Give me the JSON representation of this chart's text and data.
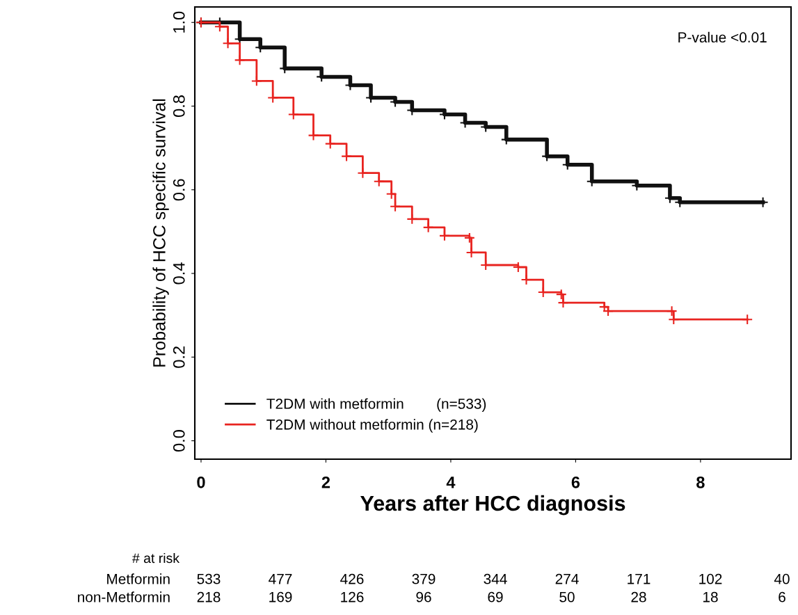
{
  "chart_data": {
    "type": "step",
    "xlabel": "Years after HCC diagnosis",
    "ylabel": "Probability of HCC specific survival",
    "xlim": [
      -0.1,
      9.45
    ],
    "ylim": [
      -0.044,
      1.037
    ],
    "xticks": [
      0,
      2,
      4,
      6,
      8
    ],
    "yticks": [
      {
        "value": 0,
        "label": "0.0"
      },
      0.2,
      0.4,
      0.6,
      0.8,
      {
        "value": 1,
        "label": "1.0"
      }
    ],
    "grid": false,
    "legend": "bottom left",
    "marker": "cross",
    "line_style": "solid",
    "series": [
      {
        "name": "T2DM with metformin        (n=533)",
        "color": "#111111",
        "x": [
          0,
          0.3,
          0.62,
          0.95,
          1.34,
          1.93,
          2.39,
          2.72,
          3.11,
          3.38,
          3.9,
          4.23,
          4.56,
          4.89,
          5.54,
          5.87,
          6.26,
          6.98,
          7.51,
          7.67,
          9.0
        ],
        "values": [
          1.0,
          1.0,
          0.96,
          0.94,
          0.89,
          0.87,
          0.85,
          0.82,
          0.81,
          0.79,
          0.78,
          0.76,
          0.75,
          0.72,
          0.68,
          0.66,
          0.62,
          0.61,
          0.58,
          0.57,
          0.57
        ]
      },
      {
        "name": "T2DM without metformin (n=218)",
        "color": "#e8231f",
        "x": [
          0,
          0.3,
          0.43,
          0.62,
          0.89,
          1.15,
          1.48,
          1.8,
          2.07,
          2.33,
          2.59,
          2.85,
          3.05,
          3.11,
          3.38,
          3.64,
          3.9,
          4.3,
          4.33,
          4.56,
          5.08,
          5.21,
          5.48,
          5.77,
          5.8,
          6.46,
          6.52,
          7.54,
          7.57,
          8.75
        ],
        "values": [
          1.0,
          0.99,
          0.95,
          0.91,
          0.86,
          0.82,
          0.78,
          0.73,
          0.71,
          0.68,
          0.64,
          0.62,
          0.59,
          0.56,
          0.53,
          0.51,
          0.49,
          0.485,
          0.45,
          0.42,
          0.415,
          0.385,
          0.355,
          0.35,
          0.33,
          0.32,
          0.31,
          0.31,
          0.29,
          0.29
        ]
      }
    ],
    "annotations": [
      "P-value <0.01",
      "# at risk",
      "Metformin 533 477 426 379 344 274 171 102 40",
      "non-Metformin 218 169 126 96 69 50 28 18 6"
    ]
  }
}
